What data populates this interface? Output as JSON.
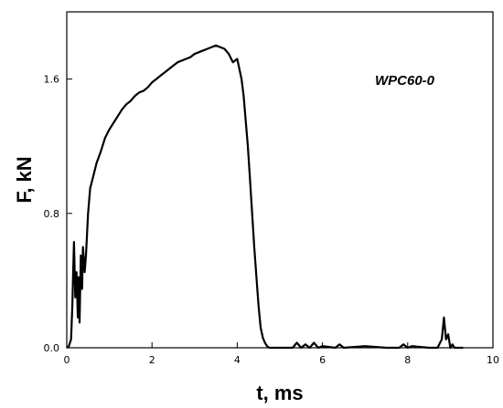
{
  "chart_data": {
    "type": "line",
    "title": "",
    "xlabel": "t, ms",
    "ylabel": "F, kN",
    "xlim": [
      0,
      10
    ],
    "ylim": [
      0,
      2.0
    ],
    "xticks": [
      "0",
      "2",
      "4",
      "6",
      "8",
      "10"
    ],
    "xtick_values": [
      0,
      2,
      4,
      6,
      8,
      10
    ],
    "yticks": [
      "0.0",
      "0.8",
      "1.6"
    ],
    "ytick_values": [
      0,
      0.8,
      1.6
    ],
    "grid": false,
    "annotation": "WPC60-0",
    "series": [
      {
        "name": "",
        "x": [
          0,
          0.05,
          0.1,
          0.13,
          0.15,
          0.17,
          0.2,
          0.23,
          0.26,
          0.28,
          0.3,
          0.33,
          0.36,
          0.38,
          0.42,
          0.45,
          0.5,
          0.55,
          0.6,
          0.65,
          0.7,
          0.8,
          0.9,
          1.0,
          1.1,
          1.2,
          1.3,
          1.4,
          1.5,
          1.6,
          1.7,
          1.8,
          1.9,
          2.0,
          2.1,
          2.2,
          2.3,
          2.4,
          2.5,
          2.6,
          2.7,
          2.8,
          2.9,
          3.0,
          3.1,
          3.2,
          3.3,
          3.4,
          3.5,
          3.6,
          3.7,
          3.8,
          3.9,
          4.0,
          4.1,
          4.15,
          4.2,
          4.25,
          4.3,
          4.35,
          4.4,
          4.45,
          4.5,
          4.55,
          4.6,
          4.65,
          4.7,
          4.75,
          4.8,
          4.9,
          5.0,
          5.3,
          5.4,
          5.5,
          5.6,
          5.7,
          5.8,
          5.9,
          6.0,
          6.3,
          6.4,
          6.5,
          7.0,
          7.5,
          7.8,
          7.9,
          8.0,
          8.1,
          8.5,
          8.7,
          8.8,
          8.85,
          8.9,
          8.95,
          9.0,
          9.05,
          9.1,
          9.3
        ],
        "y": [
          0,
          0.01,
          0.05,
          0.25,
          0.45,
          0.63,
          0.3,
          0.45,
          0.18,
          0.42,
          0.15,
          0.55,
          0.35,
          0.6,
          0.45,
          0.55,
          0.8,
          0.95,
          1.0,
          1.05,
          1.1,
          1.17,
          1.25,
          1.3,
          1.34,
          1.38,
          1.42,
          1.45,
          1.47,
          1.5,
          1.52,
          1.53,
          1.55,
          1.58,
          1.6,
          1.62,
          1.64,
          1.66,
          1.68,
          1.7,
          1.71,
          1.72,
          1.73,
          1.75,
          1.76,
          1.77,
          1.78,
          1.79,
          1.8,
          1.79,
          1.78,
          1.75,
          1.7,
          1.72,
          1.6,
          1.5,
          1.35,
          1.2,
          1.0,
          0.8,
          0.6,
          0.42,
          0.25,
          0.12,
          0.06,
          0.03,
          0.01,
          0.0,
          0.0,
          0.0,
          0.0,
          0.0,
          0.03,
          0.0,
          0.02,
          0.0,
          0.03,
          0.0,
          0.01,
          0.0,
          0.02,
          0.0,
          0.01,
          0.0,
          0.0,
          0.02,
          0.0,
          0.01,
          0.0,
          0.0,
          0.05,
          0.18,
          0.05,
          0.08,
          0.0,
          0.02,
          0.0,
          0.0
        ]
      }
    ]
  }
}
